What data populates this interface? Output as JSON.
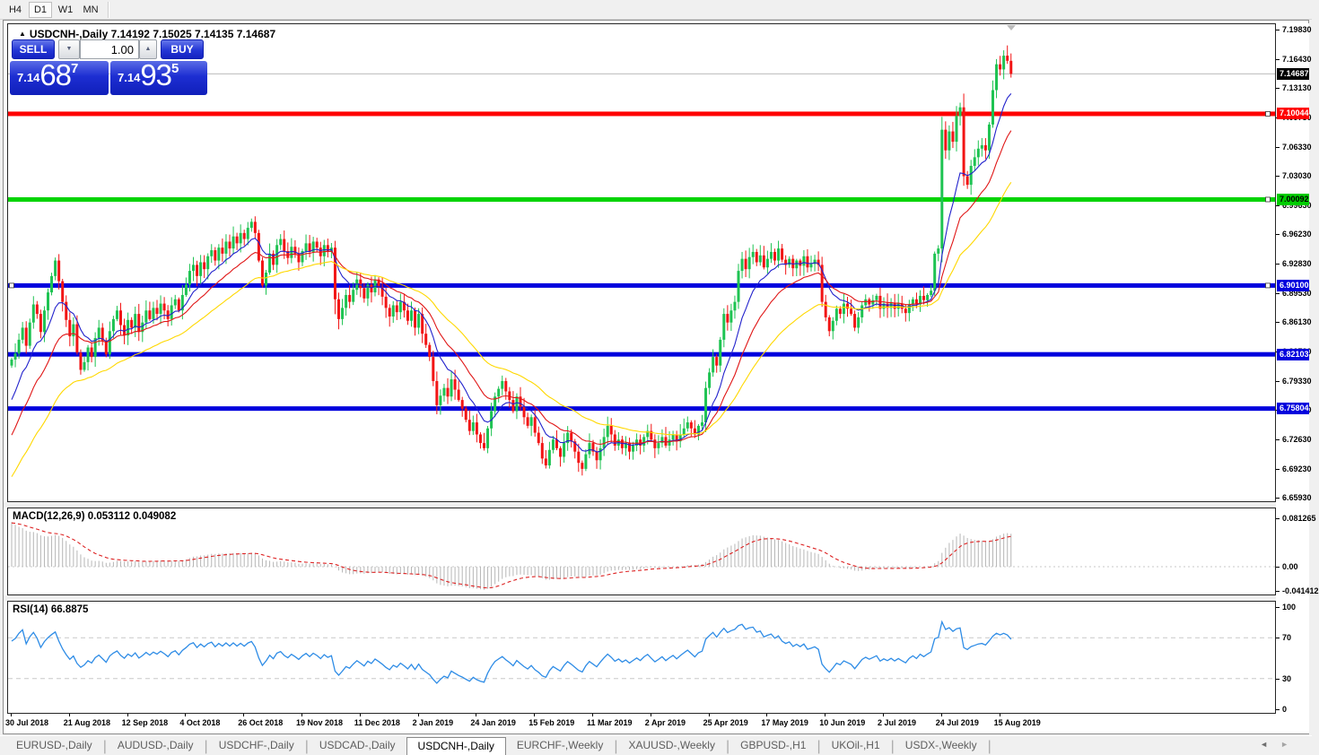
{
  "toolbar": {
    "timeframes": [
      {
        "label": "H4",
        "active": false
      },
      {
        "label": "D1",
        "active": true
      },
      {
        "label": "W1",
        "active": false
      },
      {
        "label": "MN",
        "active": false
      }
    ]
  },
  "chart": {
    "title_marker": "▲",
    "title": "USDCNH-,Daily  7.14192 7.15025 7.14135 7.14687",
    "symbol": "USDCNH-",
    "period": "Daily",
    "ohlc": {
      "open": "7.14192",
      "high": "7.15025",
      "low": "7.14135",
      "close": "7.14687"
    }
  },
  "one_click": {
    "sell_label": "SELL",
    "buy_label": "BUY",
    "volume": "1.00",
    "spin_down": "▼",
    "spin_up": "▲",
    "sell_price_small": "7.14",
    "sell_price_big": "68",
    "sell_price_sup": "7",
    "buy_price_small": "7.14",
    "buy_price_big": "93",
    "buy_price_sup": "5"
  },
  "price_axis": {
    "labels": [
      "7.19830",
      "7.16430",
      "7.13130",
      "7.09730",
      "7.06330",
      "7.03030",
      "6.99630",
      "6.96230",
      "6.92830",
      "6.89530",
      "6.86130",
      "6.82730",
      "6.79330",
      "6.75930",
      "6.72630",
      "6.69230",
      "6.65930"
    ],
    "top_price": 7.1983,
    "step": 0.034
  },
  "badges": [
    {
      "text": "7.14687",
      "price": 7.14687,
      "bg": "#000000",
      "fg": "#ffffff"
    },
    {
      "text": "7.10044",
      "price": 7.10044,
      "bg": "#ff0000",
      "fg": "#ffffff"
    },
    {
      "text": "7.00092",
      "price": 7.00092,
      "bg": "#00cc00",
      "fg": "#000000"
    },
    {
      "text": "6.90100",
      "price": 6.901,
      "bg": "#0000dd",
      "fg": "#ffffff"
    },
    {
      "text": "6.82103",
      "price": 6.82103,
      "bg": "#0000dd",
      "fg": "#ffffff"
    },
    {
      "text": "6.75804",
      "price": 6.75804,
      "bg": "#0000dd",
      "fg": "#ffffff"
    }
  ],
  "macd": {
    "label": "MACD(12,26,9)",
    "values_text": "0.053112 0.049082",
    "axis": [
      {
        "text": "0.081265",
        "v": 0.081265
      },
      {
        "text": "0.00",
        "v": 0
      },
      {
        "text": "-0.041412",
        "v": -0.041412
      }
    ]
  },
  "rsi": {
    "label": "RSI(14)",
    "value": "66.8875",
    "axis": [
      {
        "text": "100",
        "v": 100
      },
      {
        "text": "70",
        "v": 70
      },
      {
        "text": "30",
        "v": 30
      },
      {
        "text": "0",
        "v": 0
      }
    ],
    "levels": [
      70,
      30
    ]
  },
  "date_axis": {
    "labels": [
      {
        "text": "30 Jul 2018",
        "index": 0
      },
      {
        "text": "21 Aug 2018",
        "index": 16
      },
      {
        "text": "12 Sep 2018",
        "index": 32
      },
      {
        "text": "4 Oct 2018",
        "index": 48
      },
      {
        "text": "26 Oct 2018",
        "index": 64
      },
      {
        "text": "19 Nov 2018",
        "index": 80
      },
      {
        "text": "11 Dec 2018",
        "index": 96
      },
      {
        "text": "2 Jan 2019",
        "index": 112
      },
      {
        "text": "24 Jan 2019",
        "index": 128
      },
      {
        "text": "15 Feb 2019",
        "index": 144
      },
      {
        "text": "11 Mar 2019",
        "index": 160
      },
      {
        "text": "2 Apr 2019",
        "index": 176
      },
      {
        "text": "25 Apr 2019",
        "index": 192
      },
      {
        "text": "17 May 2019",
        "index": 208
      },
      {
        "text": "10 Jun 2019",
        "index": 224
      },
      {
        "text": "2 Jul 2019",
        "index": 240
      },
      {
        "text": "24 Jul 2019",
        "index": 256
      },
      {
        "text": "15 Aug 2019",
        "index": 272
      }
    ]
  },
  "tabs": {
    "items": [
      {
        "label": "EURUSD-,Daily",
        "active": false
      },
      {
        "label": "AUDUSD-,Daily",
        "active": false
      },
      {
        "label": "USDCHF-,Daily",
        "active": false
      },
      {
        "label": "USDCAD-,Daily",
        "active": false
      },
      {
        "label": "USDCNH-,Daily",
        "active": true
      },
      {
        "label": "EURCHF-,Weekly",
        "active": false
      },
      {
        "label": "XAUUSD-,Weekly",
        "active": false
      },
      {
        "label": "GBPUSD-,H1",
        "active": false
      },
      {
        "label": "UKOil-,H1",
        "active": false
      },
      {
        "label": "USDX-,Weekly",
        "active": false
      }
    ],
    "scroll_left": "◄",
    "scroll_right": "►"
  },
  "chart_data": {
    "type": "candlestick",
    "symbol": "USDCNH-",
    "timeframe": "Daily",
    "title": "USDCNH-,Daily",
    "price_range": [
      6.6593,
      7.1983
    ],
    "first_open": 6.808,
    "closes": [
      6.815,
      6.822,
      6.838,
      6.852,
      6.831,
      6.858,
      6.879,
      6.868,
      6.847,
      6.872,
      6.893,
      6.912,
      6.93,
      6.906,
      6.882,
      6.861,
      6.842,
      6.856,
      6.823,
      6.803,
      6.812,
      6.829,
      6.818,
      6.84,
      6.852,
      6.837,
      6.821,
      6.848,
      6.862,
      6.872,
      6.855,
      6.843,
      6.861,
      6.852,
      6.868,
      6.847,
      6.858,
      6.872,
      6.862,
      6.875,
      6.868,
      6.88,
      6.872,
      6.862,
      6.878,
      6.885,
      6.872,
      6.89,
      6.902,
      6.918,
      6.925,
      6.912,
      6.928,
      6.92,
      6.935,
      6.942,
      6.93,
      6.945,
      6.938,
      6.952,
      6.944,
      6.958,
      6.95,
      6.962,
      6.955,
      6.968,
      6.975,
      6.962,
      6.93,
      6.901,
      6.916,
      6.938,
      6.925,
      6.948,
      6.955,
      6.941,
      6.933,
      6.946,
      6.938,
      6.928,
      6.941,
      6.95,
      6.94,
      6.952,
      6.945,
      6.935,
      6.948,
      6.94,
      6.945,
      6.885,
      6.862,
      6.875,
      6.89,
      6.882,
      6.896,
      6.908,
      6.898,
      6.886,
      6.902,
      6.893,
      6.908,
      6.899,
      6.888,
      6.875,
      6.865,
      6.878,
      6.87,
      6.882,
      6.872,
      6.86,
      6.872,
      6.852,
      6.868,
      6.845,
      6.832,
      6.818,
      6.79,
      6.762,
      6.773,
      6.782,
      6.772,
      6.792,
      6.78,
      6.768,
      6.758,
      6.745,
      6.732,
      6.742,
      6.728,
      6.718,
      6.712,
      6.735,
      6.755,
      6.772,
      6.781,
      6.79,
      6.778,
      6.768,
      6.755,
      6.772,
      6.76,
      6.748,
      6.738,
      6.748,
      6.73,
      6.718,
      6.7,
      6.692,
      6.71,
      6.722,
      6.712,
      6.702,
      6.718,
      6.73,
      6.72,
      6.708,
      6.695,
      6.688,
      6.705,
      6.718,
      6.708,
      6.698,
      6.712,
      6.725,
      6.738,
      6.728,
      6.715,
      6.722,
      6.712,
      6.718,
      6.708,
      6.715,
      6.722,
      6.715,
      6.725,
      6.732,
      6.722,
      6.712,
      6.718,
      6.725,
      6.715,
      6.722,
      6.728,
      6.72,
      6.728,
      6.735,
      6.742,
      6.735,
      6.728,
      6.738,
      6.742,
      6.782,
      6.8,
      6.818,
      6.808,
      6.838,
      6.868,
      6.858,
      6.872,
      6.882,
      6.918,
      6.932,
      6.92,
      6.934,
      6.94,
      6.928,
      6.936,
      6.922,
      6.932,
      6.94,
      6.93,
      6.944,
      6.931,
      6.925,
      6.932,
      6.921,
      6.93,
      6.924,
      6.935,
      6.922,
      6.926,
      6.931,
      6.925,
      6.882,
      6.864,
      6.848,
      6.86,
      6.874,
      6.868,
      6.88,
      6.874,
      6.868,
      6.852,
      6.864,
      6.878,
      6.885,
      6.879,
      6.884,
      6.889,
      6.874,
      6.88,
      6.875,
      6.881,
      6.874,
      6.88,
      6.874,
      6.869,
      6.879,
      6.885,
      6.879,
      6.889,
      6.884,
      6.89,
      6.895,
      6.938,
      6.944,
      7.082,
      7.058,
      7.08,
      7.068,
      7.098,
      7.108,
      7.028,
      7.018,
      7.04,
      7.05,
      7.06,
      7.064,
      7.058,
      7.088,
      7.128,
      7.158,
      7.152,
      7.168,
      7.162,
      7.14687
    ],
    "bull_color": "#1ec352",
    "bear_color": "#f21515",
    "moving_averages": [
      {
        "name": "ma-fast",
        "period": 10,
        "seed": 6.758,
        "color": "#2222cc"
      },
      {
        "name": "ma-mid",
        "period": 20,
        "seed": 6.718,
        "color": "#e01616"
      },
      {
        "name": "ma-slow",
        "period": 40,
        "seed": 6.672,
        "color": "#ffd800"
      }
    ],
    "horizontal_lines": [
      {
        "price": 7.10044,
        "color": "#ff0000",
        "handles": [
          "right"
        ]
      },
      {
        "price": 7.00092,
        "color": "#00d400",
        "handles": [
          "right"
        ]
      },
      {
        "price": 6.901,
        "color": "#0000dd",
        "handles": [
          "left",
          "right"
        ]
      },
      {
        "price": 6.82103,
        "color": "#0000dd",
        "handles": []
      },
      {
        "price": 6.75804,
        "color": "#0000dd",
        "handles": []
      }
    ],
    "bid_line": {
      "price": 7.14687,
      "color": "#bbbbbb"
    },
    "macd_params": {
      "fast": 12,
      "slow": 26,
      "signal": 9,
      "seed_fast_off": -0.002,
      "seed_slow_off": -0.083,
      "current_main": 0.053112,
      "current_signal": 0.049082,
      "bar_color": "#b6b6b6",
      "signal_color": "#dd2222",
      "range": [
        -0.041412,
        0.081265
      ]
    },
    "rsi_params": {
      "period": 14,
      "seed_gain": 0.0042,
      "seed_loss": 0.0021,
      "current": 66.8875,
      "color": "#2e8ce6",
      "range": [
        0,
        100
      ]
    }
  }
}
